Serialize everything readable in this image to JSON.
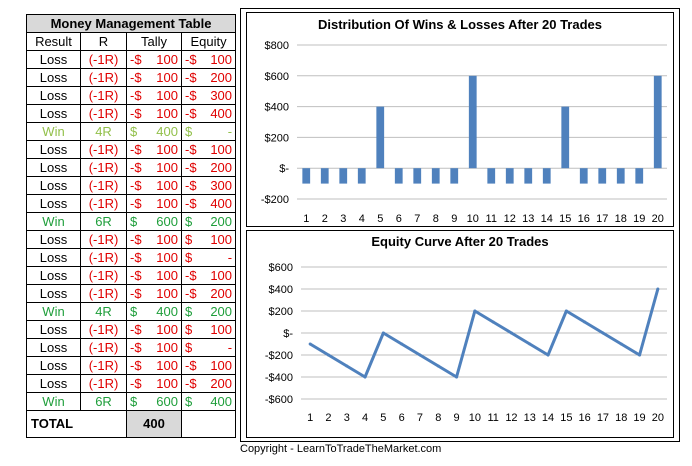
{
  "table": {
    "title": "Money Management Table",
    "headers": [
      "Result",
      "R",
      "Tally",
      "Equity"
    ],
    "rows": [
      {
        "result": "Loss",
        "r": "(-1R)",
        "tally_sign": "-$",
        "tally": "100",
        "equity_sign": "-$",
        "equity": "100",
        "color": "loss"
      },
      {
        "result": "Loss",
        "r": "(-1R)",
        "tally_sign": "-$",
        "tally": "100",
        "equity_sign": "-$",
        "equity": "200",
        "color": "loss"
      },
      {
        "result": "Loss",
        "r": "(-1R)",
        "tally_sign": "-$",
        "tally": "100",
        "equity_sign": "-$",
        "equity": "300",
        "color": "loss"
      },
      {
        "result": "Loss",
        "r": "(-1R)",
        "tally_sign": "-$",
        "tally": "100",
        "equity_sign": "-$",
        "equity": "400",
        "color": "loss"
      },
      {
        "result": "Win",
        "r": "4R",
        "tally_sign": "$",
        "tally": "400",
        "equity_sign": "$",
        "equity": "-",
        "color": "winlt"
      },
      {
        "result": "Loss",
        "r": "(-1R)",
        "tally_sign": "-$",
        "tally": "100",
        "equity_sign": "-$",
        "equity": "100",
        "color": "loss"
      },
      {
        "result": "Loss",
        "r": "(-1R)",
        "tally_sign": "-$",
        "tally": "100",
        "equity_sign": "-$",
        "equity": "200",
        "color": "loss"
      },
      {
        "result": "Loss",
        "r": "(-1R)",
        "tally_sign": "-$",
        "tally": "100",
        "equity_sign": "-$",
        "equity": "300",
        "color": "loss"
      },
      {
        "result": "Loss",
        "r": "(-1R)",
        "tally_sign": "-$",
        "tally": "100",
        "equity_sign": "-$",
        "equity": "400",
        "color": "loss"
      },
      {
        "result": "Win",
        "r": "6R",
        "tally_sign": "$",
        "tally": "600",
        "equity_sign": "$",
        "equity": "200",
        "color": "win"
      },
      {
        "result": "Loss",
        "r": "(-1R)",
        "tally_sign": "-$",
        "tally": "100",
        "equity_sign": "$",
        "equity": "100",
        "color": "loss"
      },
      {
        "result": "Loss",
        "r": "(-1R)",
        "tally_sign": "-$",
        "tally": "100",
        "equity_sign": "$",
        "equity": "-",
        "color": "loss"
      },
      {
        "result": "Loss",
        "r": "(-1R)",
        "tally_sign": "-$",
        "tally": "100",
        "equity_sign": "-$",
        "equity": "100",
        "color": "loss"
      },
      {
        "result": "Loss",
        "r": "(-1R)",
        "tally_sign": "-$",
        "tally": "100",
        "equity_sign": "-$",
        "equity": "200",
        "color": "loss"
      },
      {
        "result": "Win",
        "r": "4R",
        "tally_sign": "$",
        "tally": "400",
        "equity_sign": "$",
        "equity": "200",
        "color": "win"
      },
      {
        "result": "Loss",
        "r": "(-1R)",
        "tally_sign": "-$",
        "tally": "100",
        "equity_sign": "$",
        "equity": "100",
        "color": "loss"
      },
      {
        "result": "Loss",
        "r": "(-1R)",
        "tally_sign": "-$",
        "tally": "100",
        "equity_sign": "$",
        "equity": "-",
        "color": "loss"
      },
      {
        "result": "Loss",
        "r": "(-1R)",
        "tally_sign": "-$",
        "tally": "100",
        "equity_sign": "-$",
        "equity": "100",
        "color": "loss"
      },
      {
        "result": "Loss",
        "r": "(-1R)",
        "tally_sign": "-$",
        "tally": "100",
        "equity_sign": "-$",
        "equity": "200",
        "color": "loss"
      },
      {
        "result": "Win",
        "r": "6R",
        "tally_sign": "$",
        "tally": "600",
        "equity_sign": "$",
        "equity": "400",
        "color": "win"
      }
    ],
    "total_label": "TOTAL",
    "total_value": "400"
  },
  "colors": {
    "loss": "#e00000",
    "win": "#1e9e3a",
    "win_light": "#92c04a",
    "bar": "#4f81bd",
    "gridline": "#bfbfbf"
  },
  "chart_data": [
    {
      "type": "bar",
      "title": "Distribution Of Wins & Losses After 20 Trades",
      "categories": [
        "1",
        "2",
        "3",
        "4",
        "5",
        "6",
        "7",
        "8",
        "9",
        "10",
        "11",
        "12",
        "13",
        "14",
        "15",
        "16",
        "17",
        "18",
        "19",
        "20"
      ],
      "values": [
        -100,
        -100,
        -100,
        -100,
        400,
        -100,
        -100,
        -100,
        -100,
        600,
        -100,
        -100,
        -100,
        -100,
        400,
        -100,
        -100,
        -100,
        -100,
        600
      ],
      "ylim": [
        -200,
        800
      ],
      "yticks": [
        800,
        600,
        400,
        200,
        0,
        -200
      ],
      "ytick_labels": [
        "$800",
        "$600",
        "$400",
        "$200",
        "$-",
        "-$200"
      ],
      "grid": true,
      "xlabel": "",
      "ylabel": ""
    },
    {
      "type": "line",
      "title": "Equity Curve After 20 Trades",
      "categories": [
        "1",
        "2",
        "3",
        "4",
        "5",
        "6",
        "7",
        "8",
        "9",
        "10",
        "11",
        "12",
        "13",
        "14",
        "15",
        "16",
        "17",
        "18",
        "19",
        "20"
      ],
      "values": [
        -100,
        -200,
        -300,
        -400,
        0,
        -100,
        -200,
        -300,
        -400,
        200,
        100,
        0,
        -100,
        -200,
        200,
        100,
        0,
        -100,
        -200,
        400
      ],
      "ylim": [
        -600,
        600
      ],
      "yticks": [
        600,
        400,
        200,
        0,
        -200,
        -400,
        -600
      ],
      "ytick_labels": [
        "$600",
        "$400",
        "$200",
        "$-",
        "-$200",
        "-$400",
        "-$600"
      ],
      "grid": true,
      "xlabel": "",
      "ylabel": ""
    }
  ],
  "copyright": "Copyright - LearnToTradeTheMarket.com"
}
